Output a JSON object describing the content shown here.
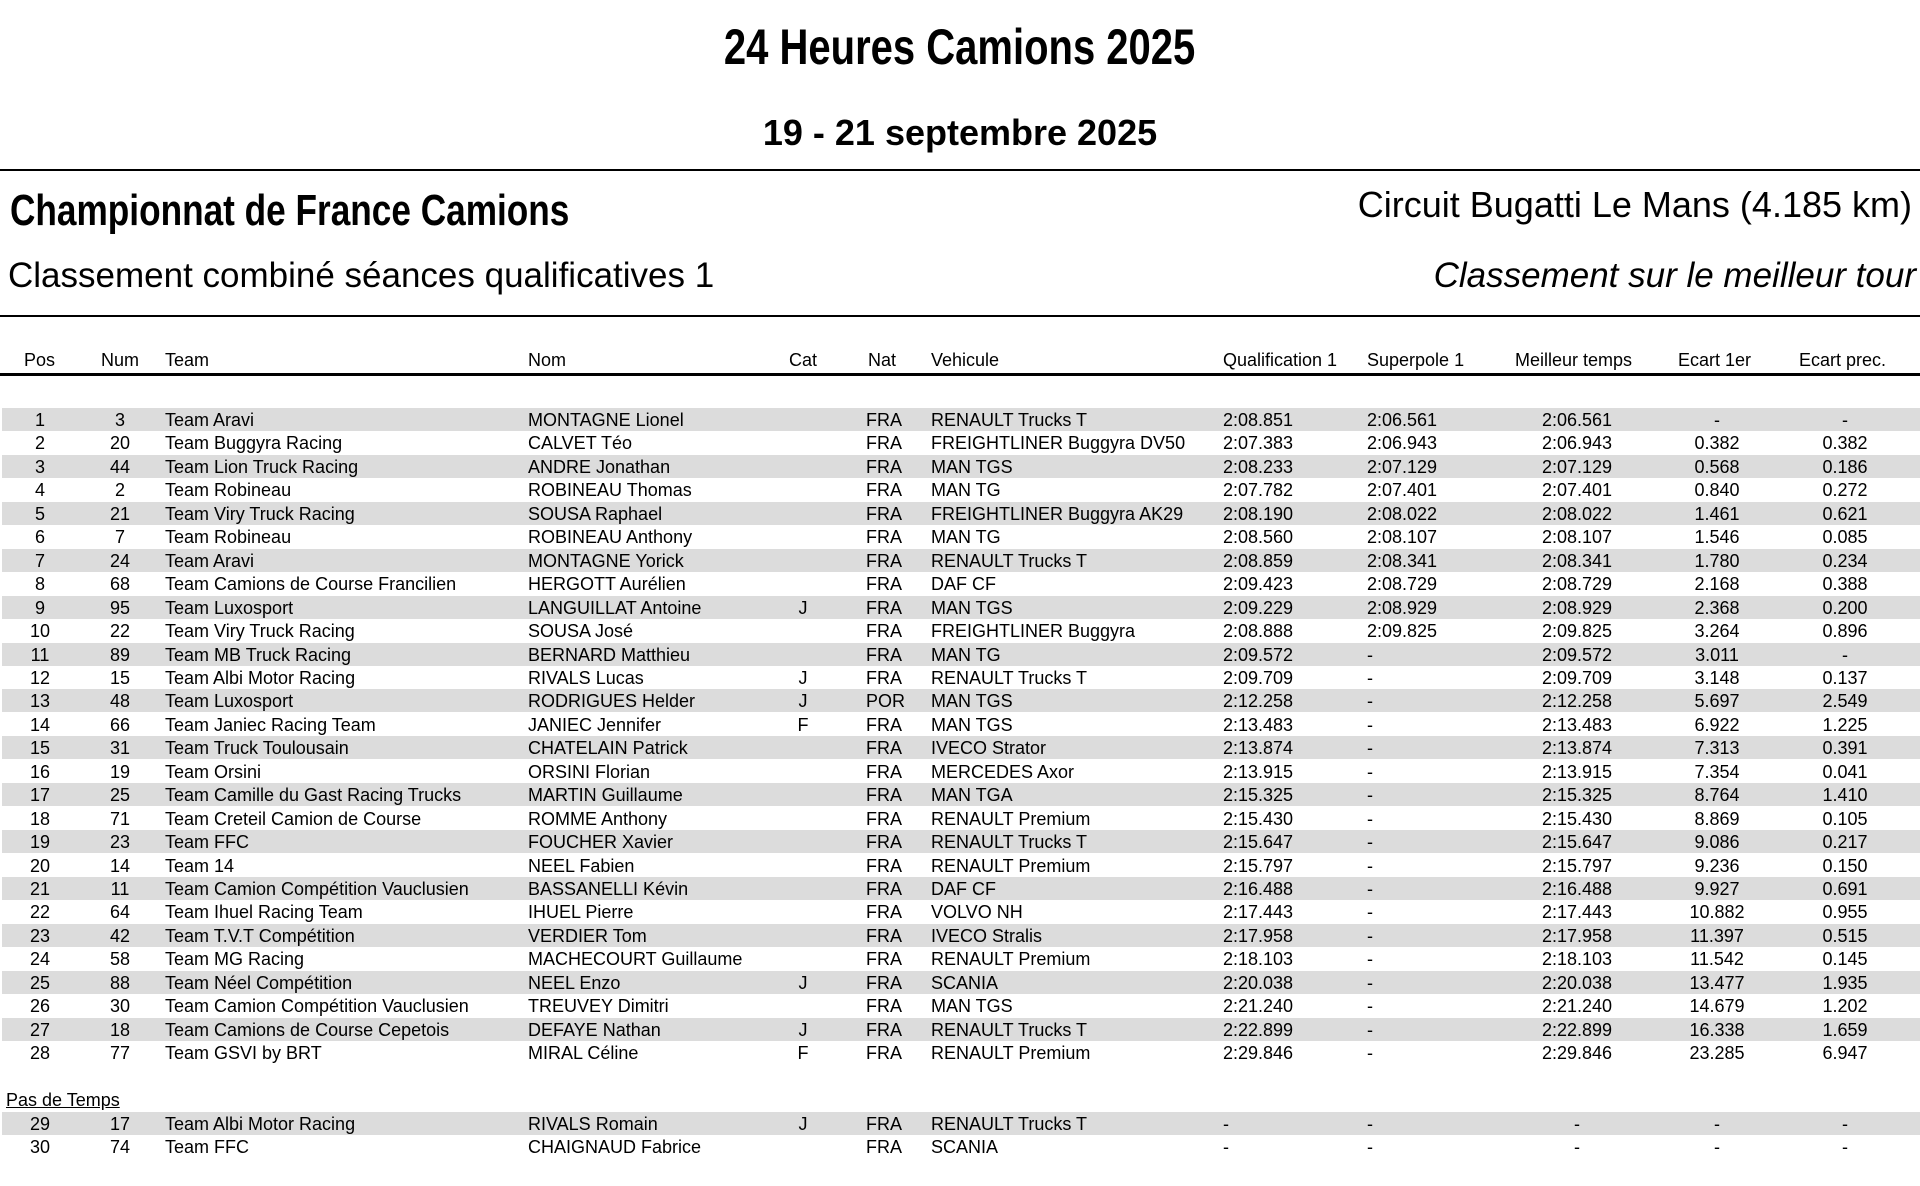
{
  "header": {
    "title": "24 Heures Camions 2025",
    "dates": "19 - 21 septembre 2025",
    "championship": "Championnat de France Camions",
    "circuit": "Circuit Bugatti Le Mans (4.185 km)",
    "classification": "Classement combiné séances qualificatives 1",
    "basis": "Classement sur le meilleur tour"
  },
  "columns": [
    "Pos",
    "Num",
    "Team",
    "Nom",
    "Cat",
    "Nat",
    "Vehicule",
    "Qualification 1",
    "Superpole 1",
    "Meilleur temps",
    "Ecart 1er",
    "Ecart prec."
  ],
  "rows": [
    [
      "1",
      "3",
      "Team Aravi",
      "MONTAGNE Lionel",
      "",
      "FRA",
      "RENAULT Trucks T",
      "2:08.851",
      "2:06.561",
      "2:06.561",
      "-",
      "-"
    ],
    [
      "2",
      "20",
      "Team Buggyra Racing",
      "CALVET Téo",
      "",
      "FRA",
      "FREIGHTLINER Buggyra DV50",
      "2:07.383",
      "2:06.943",
      "2:06.943",
      "0.382",
      "0.382"
    ],
    [
      "3",
      "44",
      "Team Lion Truck Racing",
      "ANDRE Jonathan",
      "",
      "FRA",
      "MAN TGS",
      "2:08.233",
      "2:07.129",
      "2:07.129",
      "0.568",
      "0.186"
    ],
    [
      "4",
      "2",
      "Team Robineau",
      "ROBINEAU Thomas",
      "",
      "FRA",
      "MAN TG",
      "2:07.782",
      "2:07.401",
      "2:07.401",
      "0.840",
      "0.272"
    ],
    [
      "5",
      "21",
      "Team Viry Truck Racing",
      "SOUSA Raphael",
      "",
      "FRA",
      "FREIGHTLINER Buggyra AK29",
      "2:08.190",
      "2:08.022",
      "2:08.022",
      "1.461",
      "0.621"
    ],
    [
      "6",
      "7",
      "Team Robineau",
      "ROBINEAU Anthony",
      "",
      "FRA",
      "MAN TG",
      "2:08.560",
      "2:08.107",
      "2:08.107",
      "1.546",
      "0.085"
    ],
    [
      "7",
      "24",
      "Team Aravi",
      "MONTAGNE Yorick",
      "",
      "FRA",
      "RENAULT Trucks T",
      "2:08.859",
      "2:08.341",
      "2:08.341",
      "1.780",
      "0.234"
    ],
    [
      "8",
      "68",
      "Team Camions de Course Francilien",
      "HERGOTT Aurélien",
      "",
      "FRA",
      "DAF CF",
      "2:09.423",
      "2:08.729",
      "2:08.729",
      "2.168",
      "0.388"
    ],
    [
      "9",
      "95",
      "Team Luxosport",
      "LANGUILLAT Antoine",
      "J",
      "FRA",
      "MAN TGS",
      "2:09.229",
      "2:08.929",
      "2:08.929",
      "2.368",
      "0.200"
    ],
    [
      "10",
      "22",
      "Team Viry Truck Racing",
      "SOUSA José",
      "",
      "FRA",
      "FREIGHTLINER Buggyra",
      "2:08.888",
      "2:09.825",
      "2:09.825",
      "3.264",
      "0.896"
    ],
    [
      "11",
      "89",
      "Team MB Truck Racing",
      "BERNARD Matthieu",
      "",
      "FRA",
      "MAN TG",
      "2:09.572",
      "-",
      "2:09.572",
      "3.011",
      "-"
    ],
    [
      "12",
      "15",
      "Team Albi Motor Racing",
      "RIVALS Lucas",
      "J",
      "FRA",
      "RENAULT Trucks T",
      "2:09.709",
      "-",
      "2:09.709",
      "3.148",
      "0.137"
    ],
    [
      "13",
      "48",
      "Team Luxosport",
      "RODRIGUES Helder",
      "J",
      "POR",
      "MAN TGS",
      "2:12.258",
      "-",
      "2:12.258",
      "5.697",
      "2.549"
    ],
    [
      "14",
      "66",
      "Team Janiec Racing Team",
      "JANIEC Jennifer",
      "F",
      "FRA",
      "MAN TGS",
      "2:13.483",
      "-",
      "2:13.483",
      "6.922",
      "1.225"
    ],
    [
      "15",
      "31",
      "Team Truck Toulousain",
      "CHATELAIN Patrick",
      "",
      "FRA",
      "IVECO Strator",
      "2:13.874",
      "-",
      "2:13.874",
      "7.313",
      "0.391"
    ],
    [
      "16",
      "19",
      "Team Orsini",
      "ORSINI Florian",
      "",
      "FRA",
      "MERCEDES Axor",
      "2:13.915",
      "-",
      "2:13.915",
      "7.354",
      "0.041"
    ],
    [
      "17",
      "25",
      "Team Camille du Gast Racing Trucks",
      "MARTIN Guillaume",
      "",
      "FRA",
      "MAN TGA",
      "2:15.325",
      "-",
      "2:15.325",
      "8.764",
      "1.410"
    ],
    [
      "18",
      "71",
      "Team Creteil Camion de Course",
      "ROMME Anthony",
      "",
      "FRA",
      "RENAULT Premium",
      "2:15.430",
      "-",
      "2:15.430",
      "8.869",
      "0.105"
    ],
    [
      "19",
      "23",
      "Team FFC",
      "FOUCHER Xavier",
      "",
      "FRA",
      "RENAULT Trucks T",
      "2:15.647",
      "-",
      "2:15.647",
      "9.086",
      "0.217"
    ],
    [
      "20",
      "14",
      "Team 14",
      "NEEL Fabien",
      "",
      "FRA",
      "RENAULT Premium",
      "2:15.797",
      "-",
      "2:15.797",
      "9.236",
      "0.150"
    ],
    [
      "21",
      "11",
      "Team Camion Compétition Vauclusien",
      "BASSANELLI Kévin",
      "",
      "FRA",
      "DAF CF",
      "2:16.488",
      "-",
      "2:16.488",
      "9.927",
      "0.691"
    ],
    [
      "22",
      "64",
      "Team Ihuel Racing Team",
      "IHUEL Pierre",
      "",
      "FRA",
      "VOLVO NH",
      "2:17.443",
      "-",
      "2:17.443",
      "10.882",
      "0.955"
    ],
    [
      "23",
      "42",
      "Team T.V.T Compétition",
      "VERDIER Tom",
      "",
      "FRA",
      "IVECO Stralis",
      "2:17.958",
      "-",
      "2:17.958",
      "11.397",
      "0.515"
    ],
    [
      "24",
      "58",
      "Team MG Racing",
      "MACHECOURT Guillaume",
      "",
      "FRA",
      "RENAULT Premium",
      "2:18.103",
      "-",
      "2:18.103",
      "11.542",
      "0.145"
    ],
    [
      "25",
      "88",
      "Team Néel Compétition",
      "NEEL Enzo",
      "J",
      "FRA",
      "SCANIA",
      "2:20.038",
      "-",
      "2:20.038",
      "13.477",
      "1.935"
    ],
    [
      "26",
      "30",
      "Team Camion Compétition Vauclusien",
      "TREUVEY Dimitri",
      "",
      "FRA",
      "MAN TGS",
      "2:21.240",
      "-",
      "2:21.240",
      "14.679",
      "1.202"
    ],
    [
      "27",
      "18",
      "Team Camions de Course Cepetois",
      "DEFAYE Nathan",
      "J",
      "FRA",
      "RENAULT Trucks T",
      "2:22.899",
      "-",
      "2:22.899",
      "16.338",
      "1.659"
    ],
    [
      "28",
      "77",
      "Team GSVI by BRT",
      "MIRAL Céline",
      "F",
      "FRA",
      "RENAULT Premium",
      "2:29.846",
      "-",
      "2:29.846",
      "23.285",
      "6.947"
    ]
  ],
  "no_time": {
    "label": "Pas de Temps",
    "rows": [
      [
        "29",
        "17",
        "Team Albi Motor Racing",
        "RIVALS Romain",
        "J",
        "FRA",
        "RENAULT Trucks T",
        "-",
        "-",
        "-",
        "-",
        "-"
      ],
      [
        "30",
        "74",
        "Team FFC",
        "CHAIGNAUD Fabrice",
        "",
        "FRA",
        "SCANIA",
        "-",
        "-",
        "-",
        "-",
        "-"
      ]
    ]
  },
  "colors": {
    "row_alt": "#dcdcdc"
  }
}
